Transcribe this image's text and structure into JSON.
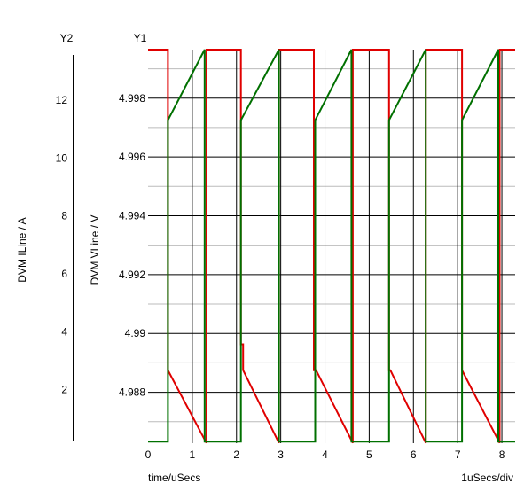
{
  "chart_data": {
    "type": "line",
    "y2_axis": {
      "title": "Y2",
      "label": "DVM ILine / A",
      "ticks": [
        "2",
        "4",
        "6",
        "8",
        "10",
        "12"
      ],
      "tick_values": [
        2,
        4,
        6,
        8,
        10,
        12
      ],
      "range": [
        0.15,
        13.75
      ]
    },
    "y1_axis": {
      "title": "Y1",
      "label": "DVM VLine / V",
      "ticks": [
        "4.988",
        "4.99",
        "4.992",
        "4.994",
        "4.996",
        "4.998"
      ],
      "tick_values": [
        4.988,
        4.99,
        4.992,
        4.994,
        4.996,
        4.998
      ],
      "range": [
        4.98627,
        4.99965
      ]
    },
    "x_axis": {
      "label": "time/uSecs",
      "scale_note": "1uSecs/div",
      "ticks": [
        "0",
        "1",
        "2",
        "3",
        "4",
        "5",
        "6",
        "7",
        "8"
      ],
      "tick_values": [
        0,
        1,
        2,
        3,
        4,
        5,
        6,
        7,
        8
      ],
      "range": [
        0,
        8.3
      ]
    },
    "grid": true,
    "colors": {
      "red_series": "#e00000",
      "green_series": "#007000",
      "major_grid": "#000000",
      "minor_grid": "#bbbbbb"
    },
    "series": [
      {
        "color": "red",
        "axis": "y1",
        "x": [
          0,
          0.45,
          0.45,
          1.32,
          1.32,
          2.1,
          2.1,
          2.15,
          2.15,
          2.96,
          2.96,
          3.75,
          3.75,
          3.8,
          3.8,
          4.63,
          4.63,
          5.45,
          5.45,
          5.48,
          5.48,
          6.28,
          6.28,
          7.1,
          7.1,
          7.1,
          7.1,
          7.95,
          7.95,
          8.3
        ],
        "y": [
          4.99965,
          4.99965,
          4.98875,
          4.98628,
          4.99965,
          4.99965,
          4.98963,
          4.98963,
          4.98875,
          4.98628,
          4.99965,
          4.99965,
          4.98875,
          4.98875,
          4.98875,
          4.98628,
          4.99965,
          4.99965,
          4.98875,
          4.98875,
          4.98875,
          4.98628,
          4.99965,
          4.99965,
          4.99792,
          4.98875,
          4.98875,
          4.98628,
          4.99965,
          4.99965
        ]
      },
      {
        "color": "green",
        "axis": "y1",
        "x": [
          0,
          0.45,
          0.45,
          1.28,
          1.28,
          2.1,
          2.1,
          2.96,
          2.96,
          3.78,
          3.78,
          4.6,
          4.6,
          5.45,
          5.45,
          6.28,
          6.28,
          7.1,
          7.1,
          7.92,
          7.92,
          8.3
        ],
        "y": [
          4.98632,
          4.98632,
          4.99725,
          4.99965,
          4.98632,
          4.98632,
          4.99725,
          4.99965,
          4.98632,
          4.98632,
          4.99725,
          4.99965,
          4.98632,
          4.98632,
          4.99725,
          4.99965,
          4.98632,
          4.98632,
          4.99725,
          4.99965,
          4.98632,
          4.98632
        ]
      }
    ]
  }
}
